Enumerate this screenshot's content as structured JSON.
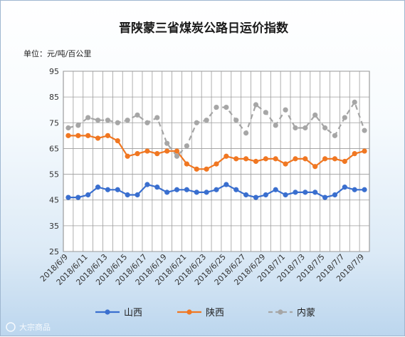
{
  "chart_data": {
    "type": "line",
    "title": "晋陕蒙三省煤炭公路日运价指数",
    "unit_label": "单位：元/吨/百公里",
    "ylim": [
      25,
      95
    ],
    "yticks": [
      25,
      35,
      45,
      55,
      65,
      75,
      85,
      95
    ],
    "grid": true,
    "legend_position": "bottom",
    "x": [
      "2018/6/9",
      "2018/6/10",
      "2018/6/11",
      "2018/6/12",
      "2018/6/13",
      "2018/6/14",
      "2018/6/15",
      "2018/6/16",
      "2018/6/17",
      "2018/6/18",
      "2018/6/19",
      "2018/6/20",
      "2018/6/21",
      "2018/6/22",
      "2018/6/23",
      "2018/6/24",
      "2018/6/25",
      "2018/6/26",
      "2018/6/27",
      "2018/6/28",
      "2018/6/29",
      "2018/6/30",
      "2018/7/1",
      "2018/7/2",
      "2018/7/3",
      "2018/7/4",
      "2018/7/5",
      "2018/7/6",
      "2018/7/7",
      "2018/7/8",
      "2018/7/9"
    ],
    "xtick_labels": [
      "2018/6/9",
      "2018/6/11",
      "2018/6/13",
      "2018/6/15",
      "2018/6/17",
      "2018/6/19",
      "2018/6/21",
      "2018/6/23",
      "2018/6/25",
      "2018/6/27",
      "2018/6/29",
      "2018/7/1",
      "2018/7/3",
      "2018/7/5",
      "2018/7/7",
      "2018/7/9"
    ],
    "series": [
      {
        "name": "山西",
        "color": "#3a6fcf",
        "dash": "solid",
        "values": [
          46,
          46,
          47,
          50,
          49,
          49,
          47,
          47,
          51,
          50,
          48,
          49,
          49,
          48,
          48,
          49,
          51,
          49,
          47,
          46,
          47,
          49,
          47,
          48,
          48,
          48,
          46,
          47,
          50,
          49,
          49
        ]
      },
      {
        "name": "陕西",
        "color": "#f07722",
        "dash": "solid",
        "values": [
          70,
          70,
          70,
          69,
          70,
          68,
          62,
          63,
          64,
          63,
          64,
          64,
          59,
          57,
          57,
          59,
          62,
          61,
          61,
          60,
          61,
          61,
          59,
          61,
          61,
          58,
          61,
          61,
          60,
          63,
          64
        ]
      },
      {
        "name": "内蒙",
        "color": "#a6a6a6",
        "dash": "dashed",
        "values": [
          73,
          74,
          77,
          76,
          76,
          75,
          76,
          78,
          75,
          77,
          67,
          62,
          66,
          75,
          76,
          81,
          81,
          76,
          71,
          82,
          79,
          74,
          80,
          73,
          73,
          78,
          73,
          70,
          77,
          83,
          72
        ]
      }
    ]
  },
  "watermark": "大宗商品"
}
